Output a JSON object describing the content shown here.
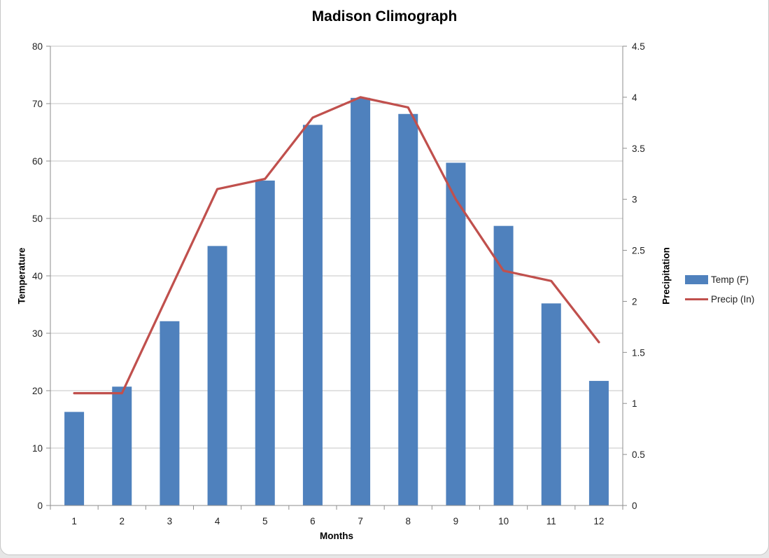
{
  "chart": {
    "title": "Madison Climograph",
    "x_axis": {
      "title": "Months",
      "labels": [
        "1",
        "2",
        "3",
        "4",
        "5",
        "6",
        "7",
        "8",
        "9",
        "10",
        "11",
        "12"
      ]
    },
    "y_left": {
      "title": "Temperature",
      "ticks": [
        "0",
        "10",
        "20",
        "30",
        "40",
        "50",
        "60",
        "70",
        "80"
      ]
    },
    "y_right": {
      "title": "Precipitation",
      "ticks": [
        "0",
        "0.5",
        "1",
        "1.5",
        "2",
        "2.5",
        "3",
        "3.5",
        "4",
        "4.5"
      ]
    },
    "legend": [
      {
        "label": "Temp (F)",
        "type": "bar"
      },
      {
        "label": "Precip (In)",
        "type": "line"
      }
    ]
  },
  "chart_data": {
    "type": "bar",
    "title": "Madison Climograph",
    "xlabel": "Months",
    "ylabel_left": "Temperature",
    "ylabel_right": "Precipitation",
    "categories": [
      1,
      2,
      3,
      4,
      5,
      6,
      7,
      8,
      9,
      10,
      11,
      12
    ],
    "series": [
      {
        "name": "Temp (F)",
        "type": "bar",
        "axis": "left",
        "values": [
          16.3,
          20.7,
          32.1,
          45.2,
          56.6,
          66.3,
          71.0,
          68.2,
          59.7,
          48.7,
          35.2,
          21.7
        ]
      },
      {
        "name": "Precip (In)",
        "type": "line",
        "axis": "right",
        "values": [
          1.1,
          1.1,
          2.1,
          3.1,
          3.2,
          3.8,
          4.0,
          3.9,
          3.0,
          2.3,
          2.2,
          1.6
        ]
      }
    ],
    "ylim_left": [
      0,
      80
    ],
    "ylim_right": [
      0,
      4.5
    ],
    "grid": "horizontal-major",
    "legend_position": "right"
  },
  "colors": {
    "bar": "#4F81BD",
    "line": "#C0504D",
    "gridline": "#C6C6C6",
    "axis": "#8E8E8E",
    "text": "#1F1F1F",
    "frame_border": "#C6C6C6"
  }
}
